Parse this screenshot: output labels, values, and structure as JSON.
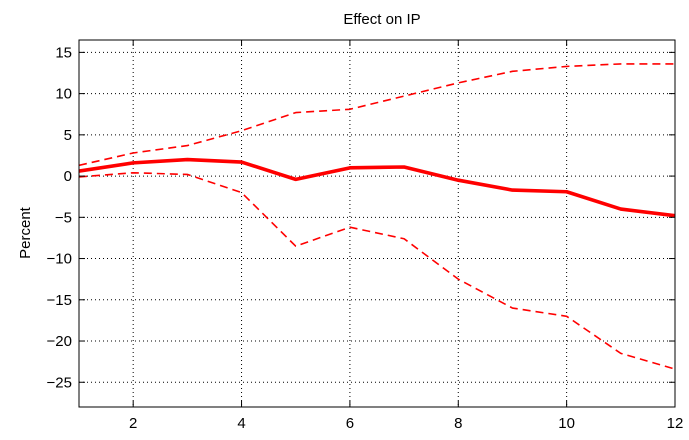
{
  "chart_data": {
    "type": "line",
    "title": "Effect on IP",
    "xlabel": "",
    "ylabel": "Percent",
    "xlim": [
      1,
      12
    ],
    "ylim": [
      -28,
      16.5
    ],
    "xticks": [
      2,
      4,
      6,
      8,
      10,
      12
    ],
    "yticks": [
      -25,
      -20,
      -15,
      -10,
      -5,
      0,
      5,
      10,
      15
    ],
    "grid": "dotted",
    "legend": "none",
    "x": [
      1,
      2,
      3,
      4,
      5,
      6,
      7,
      8,
      9,
      10,
      11,
      12
    ],
    "series": [
      {
        "style": "solid-thick",
        "color": "#ff0000",
        "values": [
          0.6,
          1.6,
          2.0,
          1.7,
          -0.4,
          1.0,
          1.1,
          -0.5,
          -1.7,
          -1.9,
          -4.0,
          -4.8
        ]
      },
      {
        "style": "dashed",
        "color": "#ff0000",
        "values": [
          1.3,
          2.8,
          3.7,
          5.5,
          7.7,
          8.1,
          9.7,
          11.3,
          12.7,
          13.3,
          13.6,
          13.6
        ]
      },
      {
        "style": "dashed",
        "color": "#ff0000",
        "values": [
          -0.1,
          0.4,
          0.2,
          -2.0,
          -8.5,
          -6.2,
          -7.6,
          -12.5,
          -16.0,
          -17.0,
          -21.5,
          -23.4
        ]
      }
    ]
  }
}
